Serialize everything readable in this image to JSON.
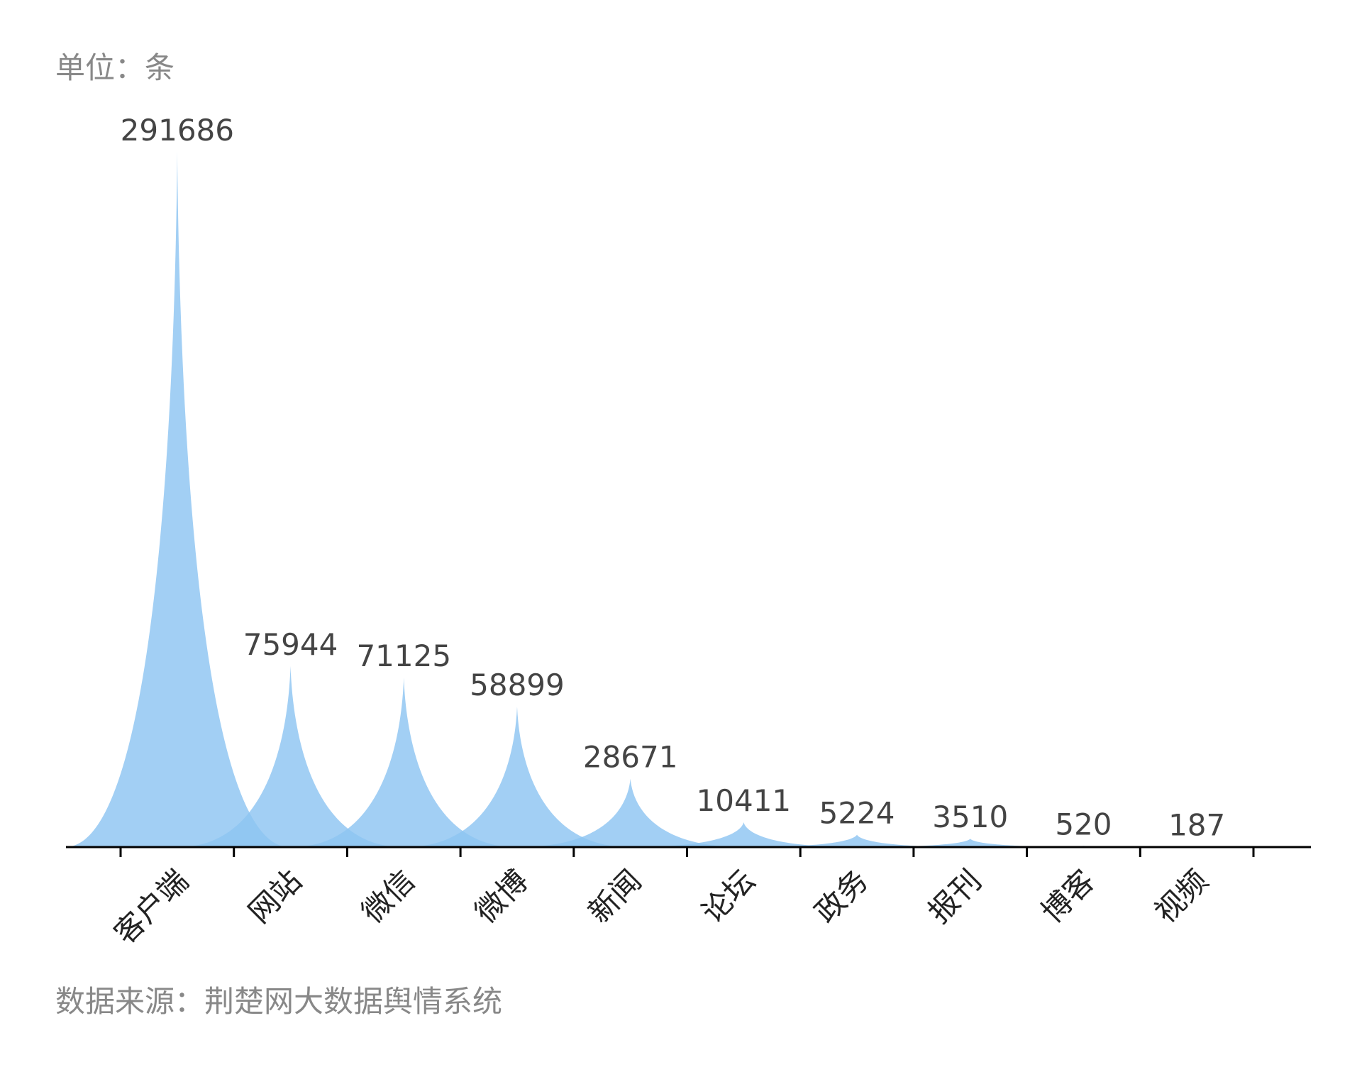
{
  "unit_label": "单位：条",
  "source_label": "数据来源：荆楚网大数据舆情系统",
  "colors": {
    "peak_fill": "#8ec4f2",
    "axis": "#000000",
    "value_text": "#444444",
    "label_text": "#222222",
    "note_text": "#888888"
  },
  "chart_data": {
    "type": "bar",
    "style": "pictorial-spike",
    "title": "",
    "xlabel": "",
    "ylabel": "",
    "ylim": [
      0,
      291686
    ],
    "grid": false,
    "categories": [
      "客户端",
      "网站",
      "微信",
      "微博",
      "新闻",
      "论坛",
      "政务",
      "报刊",
      "博客",
      "视频"
    ],
    "values": [
      291686,
      75944,
      71125,
      58899,
      28671,
      10411,
      5224,
      3510,
      520,
      187
    ]
  }
}
